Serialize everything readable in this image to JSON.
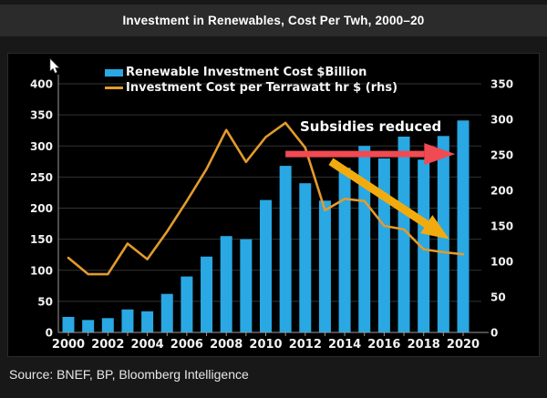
{
  "header": {
    "title": "Investment in Renewables, Cost Per Twh, 2000–20"
  },
  "footer": {
    "source": "Source: BNEF, BP, Bloomberg Intelligence"
  },
  "legend": [
    {
      "label": "Renewable Investment Cost $Billion",
      "color": "#29A8E3",
      "swatch": "bar"
    },
    {
      "label": "Investment Cost per Terrawatt hr $ (rhs)",
      "color": "#E39B2D",
      "swatch": "line"
    }
  ],
  "colors": {
    "background": "#181818",
    "title_bar": "#2b2b2b",
    "panel": "#000000",
    "bar": "#29A8E3",
    "line": "#E39B2D",
    "red_arrow": "#F04A52",
    "yellow_arrow": "#F2AB0E",
    "grid": "#333333",
    "axis": "#9a9a9a",
    "text": "#f2f2f2"
  },
  "chart_data": {
    "type": "bar",
    "subtype": "bar+line combo, dual axis",
    "title": "Investment in Renewables, Cost Per Twh, 2000–20",
    "categories": [
      2000,
      2001,
      2002,
      2003,
      2004,
      2005,
      2006,
      2007,
      2008,
      2009,
      2010,
      2011,
      2012,
      2013,
      2014,
      2015,
      2016,
      2017,
      2018,
      2019,
      2020
    ],
    "series": [
      {
        "name": "Renewable Investment Cost $Billion",
        "type": "bar",
        "axis": "left",
        "color": "#29A8E3",
        "values": [
          25,
          20,
          23,
          37,
          34,
          62,
          90,
          122,
          155,
          150,
          213,
          268,
          240,
          212,
          265,
          300,
          280,
          315,
          278,
          316,
          341
        ]
      },
      {
        "name": "Investment Cost per Terrawatt hr $ (rhs)",
        "type": "line",
        "axis": "right",
        "color": "#E39B2D",
        "values": [
          105,
          82,
          82,
          125,
          103,
          142,
          185,
          230,
          285,
          240,
          275,
          295,
          260,
          172,
          188,
          185,
          150,
          145,
          117,
          113,
          110
        ]
      }
    ],
    "left_axis": {
      "min": 0,
      "max": 400,
      "tick_step": 50,
      "ticks": [
        0,
        50,
        100,
        150,
        200,
        250,
        300,
        350,
        400
      ]
    },
    "right_axis": {
      "min": 0,
      "max": 350,
      "tick_step": 50,
      "ticks": [
        0,
        50,
        100,
        150,
        200,
        250,
        300,
        350
      ]
    },
    "x_axis": {
      "label_every": 2,
      "tick_labels": [
        "2000",
        "2002",
        "2004",
        "2006",
        "2008",
        "2010",
        "2012",
        "2014",
        "2016",
        "2018",
        "2020"
      ]
    },
    "grid": true,
    "legend_position": "top-left inside plot",
    "annotations": [
      {
        "id": "subsidies-text",
        "type": "text",
        "text": "Subsidies reduced"
      },
      {
        "id": "flat-investment-arrow",
        "type": "arrow",
        "color": "#F04A52",
        "from": {
          "year": 2011.0,
          "left_value": 287
        },
        "to": {
          "year": 2019.6,
          "left_value": 287
        },
        "shaft_width": 7,
        "head_length": 34,
        "head_half_width": 12
      },
      {
        "id": "falling-cost-arrow",
        "type": "arrow",
        "color": "#F2AB0E",
        "from": {
          "year": 2013.3,
          "left_value": 275
        },
        "to": {
          "year": 2019.3,
          "left_value": 150
        },
        "shaft_width": 9,
        "head_length": 30,
        "head_half_width": 12
      }
    ]
  }
}
